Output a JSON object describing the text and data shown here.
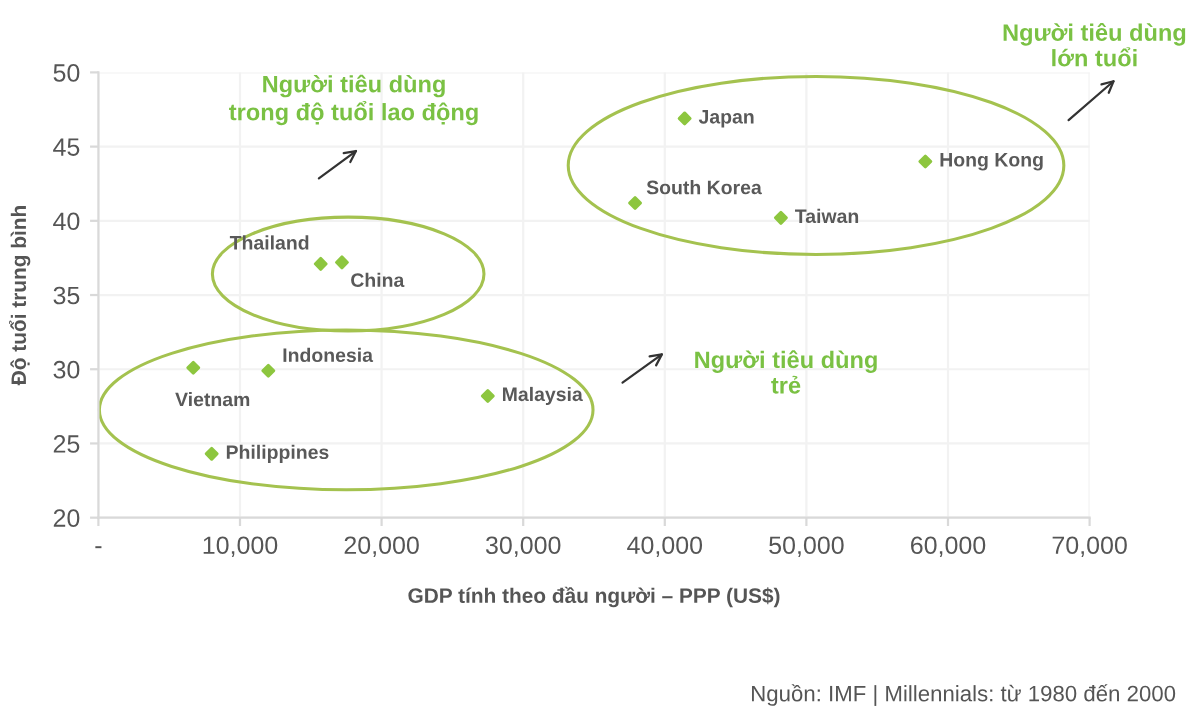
{
  "chart_data": {
    "type": "scatter",
    "xlabel": "GDP tính theo đầu người – PPP (US$)",
    "ylabel": "Độ tuổi trung bình",
    "xlim": [
      0,
      70000
    ],
    "ylim": [
      20,
      50
    ],
    "xticks": [
      {
        "value": 0,
        "label": "-"
      },
      {
        "value": 10000,
        "label": "10,000"
      },
      {
        "value": 20000,
        "label": "20,000"
      },
      {
        "value": 30000,
        "label": "30,000"
      },
      {
        "value": 40000,
        "label": "40,000"
      },
      {
        "value": 50000,
        "label": "50,000"
      },
      {
        "value": 60000,
        "label": "60,000"
      },
      {
        "value": 70000,
        "label": "70,000"
      }
    ],
    "yticks": [
      20,
      25,
      30,
      35,
      40,
      45,
      50
    ],
    "grid": true,
    "marker": "diamond",
    "series": [
      {
        "name": "Vietnam",
        "color": "#8dc63f",
        "x": [
          6700
        ],
        "values": [
          30.1
        ]
      },
      {
        "name": "Indonesia",
        "color": "#8dc63f",
        "x": [
          12000
        ],
        "values": [
          29.9
        ]
      },
      {
        "name": "Philippines",
        "color": "#8dc63f",
        "x": [
          8000
        ],
        "values": [
          24.3
        ]
      },
      {
        "name": "Thailand",
        "color": "#8dc63f",
        "x": [
          15700
        ],
        "values": [
          37.1
        ]
      },
      {
        "name": "China",
        "color": "#8dc63f",
        "x": [
          17200
        ],
        "values": [
          37.2
        ]
      },
      {
        "name": "Malaysia",
        "color": "#8dc63f",
        "x": [
          27500
        ],
        "values": [
          28.2
        ]
      },
      {
        "name": "Japan",
        "color": "#8dc63f",
        "x": [
          41400
        ],
        "values": [
          46.9
        ]
      },
      {
        "name": "South Korea",
        "color": "#8dc63f",
        "x": [
          37900
        ],
        "values": [
          41.2
        ]
      },
      {
        "name": "Taiwan",
        "color": "#8dc63f",
        "x": [
          48200
        ],
        "values": [
          40.2
        ]
      },
      {
        "name": "Hong Kong",
        "color": "#8dc63f",
        "x": [
          58400
        ],
        "values": [
          44.0
        ]
      }
    ],
    "annotations": [
      "Người tiêu dùng\ntrong độ tuổi lao động",
      "Người tiêu dùng\ntrẻ",
      "Người tiêu dùng\nlớn tuổi",
      "Nguồn: IMF | Millennials: từ 1980 đến 2000"
    ]
  }
}
